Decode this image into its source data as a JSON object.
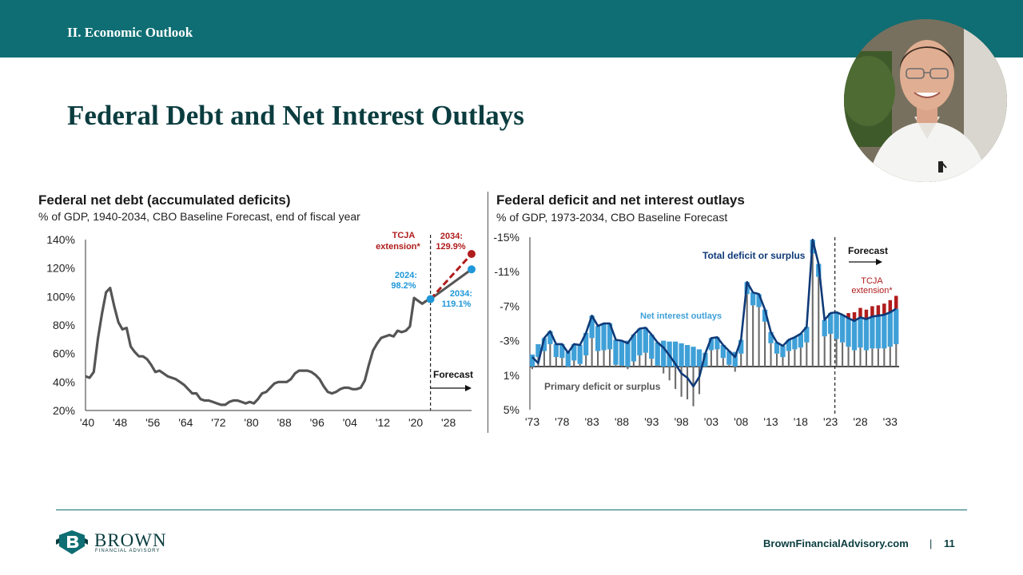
{
  "header": {
    "section": "II. Economic Outlook"
  },
  "slide": {
    "title": "Federal Debt and Net Interest Outlays"
  },
  "footer": {
    "url": "BrownFinancialAdvisory.com",
    "separator": "|",
    "page": "11"
  },
  "logo": {
    "name": "BROWN",
    "sub": "FINANCIAL ADVISORY"
  },
  "colors": {
    "teal": "#0e6e73",
    "dark_teal": "#0b3d3f",
    "debt_line": "#555555",
    "tcja_red": "#b01c1c",
    "forecast_blue": "#1f97d8",
    "deficit_navy": "#0f3a78",
    "interest_blue": "#3fa0d8",
    "primary_gray": "#6b6b6b"
  },
  "chart_data": [
    {
      "type": "line",
      "title": "Federal net debt (accumulated deficits)",
      "subtitle": "% of GDP, 1940-2034, CBO Baseline Forecast, end of fiscal year",
      "ylim": [
        20,
        140
      ],
      "yticks": [
        "20%",
        "40%",
        "60%",
        "80%",
        "100%",
        "120%",
        "140%"
      ],
      "xticks": [
        "'40",
        "'48",
        "'56",
        "'64",
        "'72",
        "'80",
        "'88",
        "'96",
        "'04",
        "'12",
        "'20",
        "'28"
      ],
      "grid": false,
      "series": [
        {
          "x": [
            1940,
            1941,
            1942,
            1943,
            1944,
            1945,
            1946,
            1947,
            1948,
            1949,
            1950,
            1951,
            1952,
            1953,
            1954,
            1955,
            1956,
            1957,
            1958,
            1959,
            1960,
            1961,
            1962,
            1963,
            1964,
            1965,
            1966,
            1967,
            1968,
            1969,
            1970,
            1971,
            1972,
            1973,
            1974,
            1975,
            1976,
            1977,
            1978,
            1979,
            1980,
            1981,
            1982,
            1983,
            1984,
            1985,
            1986,
            1987,
            1988,
            1989,
            1990,
            1991,
            1992,
            1993,
            1994,
            1995,
            1996,
            1997,
            1998,
            1999,
            2000,
            2001,
            2002,
            2003,
            2004,
            2005,
            2006,
            2007,
            2008,
            2009,
            2010,
            2011,
            2012,
            2013,
            2014,
            2015,
            2016,
            2017,
            2018,
            2019,
            2020,
            2021,
            2022,
            2023,
            2024
          ],
          "values": [
            44,
            43,
            47,
            70,
            88,
            103,
            106,
            93,
            82,
            77,
            78,
            65,
            61,
            58,
            58,
            56,
            52,
            47,
            48,
            46,
            44,
            43,
            42,
            40,
            38,
            35,
            32,
            32,
            28,
            27,
            27,
            26,
            25,
            24,
            24,
            26,
            27,
            27,
            26,
            25,
            26,
            25,
            28,
            32,
            33,
            36,
            39,
            40,
            40,
            40,
            42,
            46,
            48,
            48,
            48,
            47,
            45,
            42,
            37,
            33,
            32,
            33,
            35,
            36,
            36,
            35,
            35,
            36,
            41,
            52,
            62,
            67,
            71,
            72,
            73,
            72,
            76,
            75,
            76,
            79,
            99,
            97,
            95,
            97,
            98.2
          ]
        },
        {
          "name": "Forecast",
          "x": [
            2024,
            2034
          ],
          "values": [
            98.2,
            119.1
          ]
        },
        {
          "name": "TCJA extension*",
          "x": [
            2024,
            2034
          ],
          "values": [
            98.2,
            129.9
          ]
        }
      ],
      "annotations": [
        "TCJA",
        "extension*",
        "2034:",
        "129.9%",
        "2024:",
        "98.2%",
        "2034:",
        "119.1%",
        "Forecast"
      ]
    },
    {
      "type": "bar",
      "title": "Federal deficit and net interest outlays",
      "subtitle": "% of GDP, 1973-2034, CBO Baseline Forecast",
      "ylim": [
        5,
        -15
      ],
      "yticks": [
        "-15%",
        "-11%",
        "-7%",
        "-3%",
        "1%",
        "5%"
      ],
      "xticks": [
        "'73",
        "'78",
        "'83",
        "'88",
        "'93",
        "'98",
        "'03",
        "'08",
        "'13",
        "'18",
        "'23",
        "'28",
        "'33"
      ],
      "x": [
        1973,
        1974,
        1975,
        1976,
        1977,
        1978,
        1979,
        1980,
        1981,
        1982,
        1983,
        1984,
        1985,
        1986,
        1987,
        1988,
        1989,
        1990,
        1991,
        1992,
        1993,
        1994,
        1995,
        1996,
        1997,
        1998,
        1999,
        2000,
        2001,
        2002,
        2003,
        2004,
        2005,
        2006,
        2007,
        2008,
        2009,
        2010,
        2011,
        2012,
        2013,
        2014,
        2015,
        2016,
        2017,
        2018,
        2019,
        2020,
        2021,
        2022,
        2023,
        2024,
        2025,
        2026,
        2027,
        2028,
        2029,
        2030,
        2031,
        2032,
        2033,
        2034
      ],
      "series": [
        {
          "name": "Total deficit or surplus",
          "type": "line",
          "values": [
            -1.1,
            -0.4,
            -3.3,
            -4.1,
            -2.6,
            -2.6,
            -1.6,
            -2.6,
            -2.5,
            -3.9,
            -5.9,
            -4.7,
            -5.0,
            -5.0,
            -3.1,
            -3.0,
            -2.7,
            -3.7,
            -4.4,
            -4.5,
            -3.7,
            -2.8,
            -2.2,
            -1.3,
            -0.3,
            0.8,
            1.3,
            2.3,
            1.2,
            -1.5,
            -3.3,
            -3.4,
            -2.5,
            -1.8,
            -1.1,
            -3.1,
            -9.8,
            -8.6,
            -8.4,
            -6.6,
            -4.0,
            -2.8,
            -2.4,
            -3.1,
            -3.4,
            -3.8,
            -4.6,
            -14.7,
            -11.9,
            -5.4,
            -6.2,
            -6.3,
            -6.0,
            -5.6,
            -5.3,
            -5.7,
            -5.5,
            -5.8,
            -5.9,
            -6.0,
            -6.3,
            -6.7
          ]
        },
        {
          "name": "Net interest outlays",
          "type": "bar",
          "values": [
            1.4,
            1.5,
            1.5,
            1.5,
            1.5,
            1.6,
            1.7,
            1.9,
            2.2,
            2.6,
            2.6,
            2.9,
            3.1,
            3.0,
            2.9,
            2.9,
            3.0,
            3.1,
            3.1,
            2.9,
            2.8,
            2.7,
            3.0,
            2.9,
            2.9,
            2.7,
            2.5,
            2.3,
            2.0,
            1.6,
            1.4,
            1.4,
            1.5,
            1.6,
            1.7,
            1.6,
            1.4,
            1.5,
            1.5,
            1.4,
            1.3,
            1.3,
            1.3,
            1.3,
            1.4,
            1.6,
            1.8,
            1.6,
            1.5,
            1.9,
            2.4,
            3.1,
            3.2,
            3.3,
            3.4,
            3.5,
            3.6,
            3.7,
            3.8,
            3.9,
            4.0,
            4.1
          ]
        },
        {
          "name": "Primary deficit or surplus",
          "type": "bar",
          "values": [
            0.3,
            -1.1,
            -1.8,
            -2.6,
            -1.1,
            -1.0,
            0.1,
            -0.7,
            -0.3,
            -1.3,
            -3.3,
            -1.8,
            -1.9,
            -2.0,
            -0.2,
            -0.1,
            0.3,
            -0.6,
            -1.3,
            -1.6,
            -0.9,
            -0.1,
            0.8,
            1.6,
            2.6,
            3.5,
            3.8,
            4.6,
            3.2,
            0.1,
            -1.9,
            -2.0,
            -1.0,
            -0.2,
            0.6,
            -1.5,
            -8.4,
            -7.1,
            -6.9,
            -5.2,
            -2.7,
            -1.5,
            -1.1,
            -1.8,
            -2.0,
            -2.2,
            -2.8,
            -13.1,
            -10.4,
            -3.5,
            -3.8,
            -3.2,
            -2.8,
            -2.3,
            -1.9,
            -2.2,
            -1.9,
            -2.1,
            -2.1,
            -2.1,
            -2.3,
            -2.6
          ]
        },
        {
          "name": "TCJA extension*",
          "type": "bar",
          "x": [
            2026,
            2027,
            2028,
            2029,
            2030,
            2031,
            2032,
            2033,
            2034
          ],
          "values": [
            0.6,
            1.0,
            1.1,
            1.1,
            1.2,
            1.2,
            1.3,
            1.4,
            1.5
          ]
        }
      ],
      "annotations": [
        "Total deficit or surplus",
        "Net interest outlays",
        "Primary deficit or surplus",
        "Forecast",
        "TCJA",
        "extension*"
      ]
    }
  ]
}
